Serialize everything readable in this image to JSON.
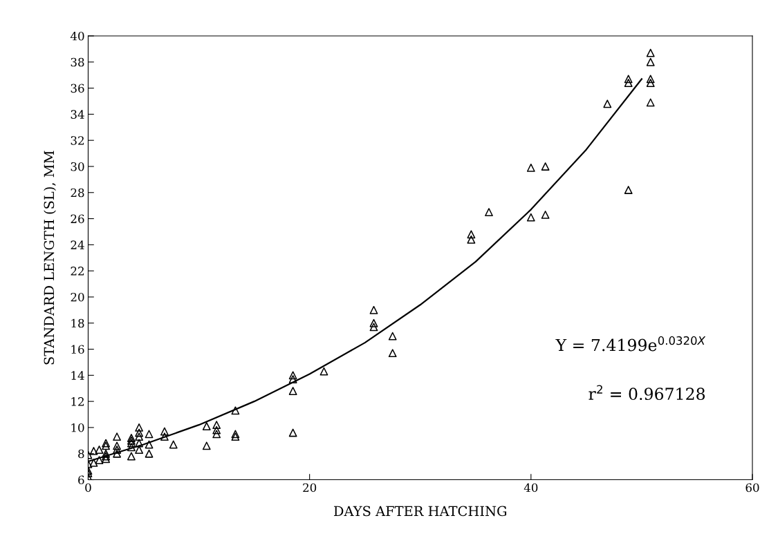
{
  "chart_data": {
    "type": "scatter",
    "xlabel": "DAYS AFTER HATCHING",
    "ylabel": "STANDARD LENGTH (SL), MM",
    "xlim": [
      0,
      60
    ],
    "xticks": [
      0,
      20,
      40,
      60
    ],
    "ylim": [
      6,
      40
    ],
    "yticks": [
      6,
      8,
      10,
      12,
      14,
      16,
      18,
      20,
      22,
      24,
      26,
      28,
      30,
      32,
      34,
      36,
      38,
      40
    ],
    "grid": false,
    "marker": "triangle",
    "series": [
      {
        "color": "#000000",
        "x": [
          0,
          0,
          0,
          0,
          0,
          0.5,
          0.5,
          1,
          1,
          1.6,
          1.6,
          1.6,
          1.6,
          1.6,
          2.6,
          2.6,
          2.6,
          2.6,
          3.9,
          3.9,
          3.9,
          3.9,
          3.9,
          4.6,
          4.6,
          4.6,
          4.6,
          4.6,
          5.5,
          5.5,
          5.5,
          6.9,
          6.9,
          7.7,
          10.7,
          10.7,
          11.6,
          11.6,
          11.6,
          13.3,
          13.3,
          13.3,
          18.5,
          18.5,
          18.5,
          18.5,
          21.3,
          25.8,
          25.8,
          25.8,
          27.5,
          27.5,
          34.6,
          34.6,
          36.2,
          40,
          40,
          41.3,
          41.3,
          46.9,
          48.8,
          48.8,
          48.8,
          50.8,
          50.8,
          50.8,
          50.8,
          50.8
        ],
        "values": [
          6.2,
          6.5,
          6.7,
          7.2,
          7.9,
          7.3,
          8.2,
          7.5,
          8.3,
          7.6,
          7.8,
          8.0,
          8.6,
          8.8,
          8.0,
          8.3,
          8.6,
          9.3,
          7.8,
          8.5,
          8.8,
          9.0,
          9.2,
          8.3,
          8.8,
          9.3,
          9.6,
          10.0,
          8.0,
          8.7,
          9.5,
          9.3,
          9.7,
          8.7,
          8.6,
          10.1,
          9.5,
          9.8,
          10.2,
          9.3,
          9.5,
          11.3,
          9.6,
          12.8,
          13.7,
          14.0,
          14.3,
          17.7,
          18.0,
          19.0,
          15.7,
          17.0,
          24.4,
          24.8,
          26.5,
          26.1,
          29.9,
          26.3,
          30.0,
          34.8,
          28.2,
          36.4,
          36.7,
          34.9,
          36.4,
          36.7,
          38.0,
          38.7
        ]
      },
      {
        "type": "line",
        "color": "#000000",
        "marker": "none",
        "line_style": "solid",
        "x": [
          0,
          5,
          10,
          15,
          20,
          25,
          30,
          35,
          40,
          45,
          50
        ],
        "values": [
          7.4,
          8.7,
          10.2,
          12.0,
          14.1,
          16.5,
          19.4,
          22.7,
          26.7,
          31.3,
          36.7
        ]
      }
    ],
    "annotations": [
      "Y = 7.4199e$^{0.0320X}$",
      "r$^{2}$ = 0.967128"
    ]
  }
}
